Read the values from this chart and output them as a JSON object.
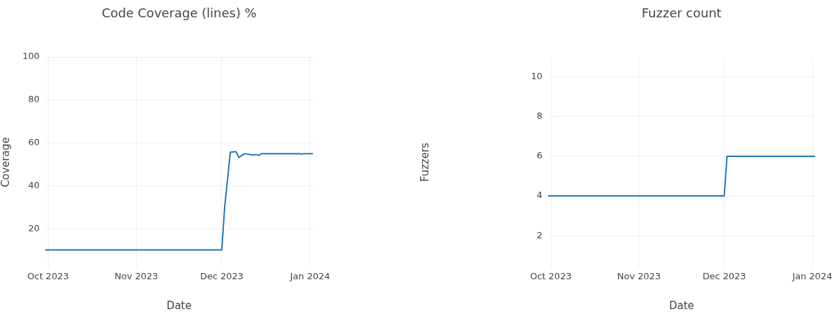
{
  "chart_data": [
    {
      "type": "line",
      "title": "Code Coverage (lines) %",
      "xlabel": "Date",
      "ylabel": "Coverage",
      "color": "#1f77b4",
      "x": [
        "2023-09-30",
        "2023-12-01",
        "2023-12-02",
        "2023-12-04",
        "2023-12-06",
        "2023-12-07",
        "2023-12-09",
        "2023-12-12",
        "2023-12-13",
        "2023-12-14",
        "2023-12-15",
        "2023-12-28",
        "2023-12-29",
        "2023-12-30",
        "2024-01-02"
      ],
      "values": [
        10.2,
        10.2,
        30,
        55.7,
        55.9,
        53.2,
        55,
        54.3,
        54.6,
        54.2,
        55,
        55,
        54.8,
        55,
        55
      ],
      "xlim": [
        "2023-09-30",
        "2024-01-02"
      ],
      "ylim": [
        2,
        100
      ],
      "xticks": [
        {
          "value": "2023-10-01",
          "label": "Oct 2023"
        },
        {
          "value": "2023-11-01",
          "label": "Nov 2023"
        },
        {
          "value": "2023-12-01",
          "label": "Dec 2023"
        },
        {
          "value": "2024-01-01",
          "label": "Jan 2024"
        }
      ],
      "yticks": [
        20,
        40,
        60,
        80,
        100
      ],
      "grid": true
    },
    {
      "type": "line",
      "title": "Fuzzer count",
      "xlabel": "Date",
      "ylabel": "Fuzzers",
      "color": "#1f77b4",
      "x": [
        "2023-09-30",
        "2023-12-01",
        "2023-12-02",
        "2024-01-02"
      ],
      "values": [
        4,
        4,
        6,
        6
      ],
      "xlim": [
        "2023-09-30",
        "2024-01-02"
      ],
      "ylim": [
        0.4,
        11
      ],
      "xticks": [
        {
          "value": "2023-10-01",
          "label": "Oct 2023"
        },
        {
          "value": "2023-11-01",
          "label": "Nov 2023"
        },
        {
          "value": "2023-12-01",
          "label": "Dec 2023"
        },
        {
          "value": "2024-01-01",
          "label": "Jan 2024"
        }
      ],
      "yticks": [
        2,
        4,
        6,
        8,
        10
      ],
      "grid": true
    }
  ]
}
